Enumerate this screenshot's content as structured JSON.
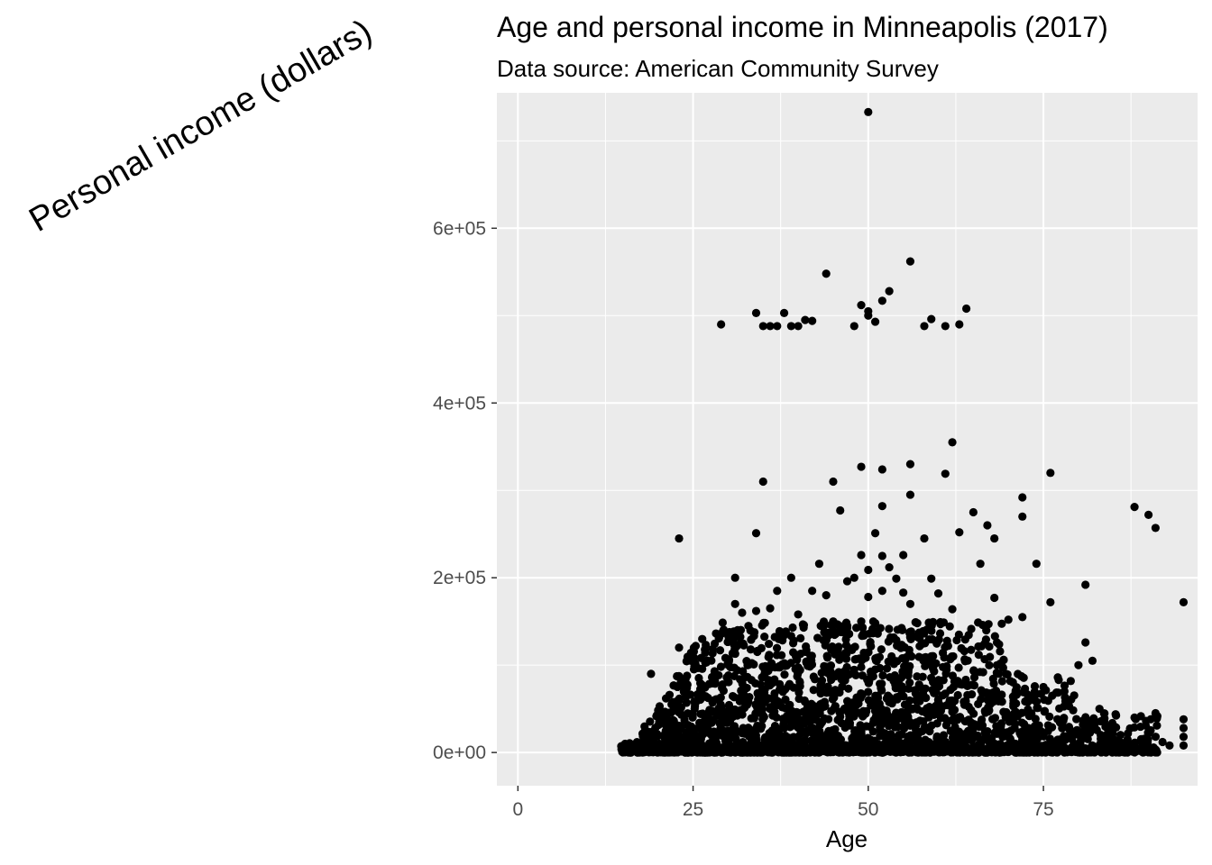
{
  "chart_data": {
    "type": "scatter",
    "title": "Age and personal income in Minneapolis (2017)",
    "subtitle": "Data source: American Community Survey",
    "xlabel": "Age",
    "ylabel": "Personal income (dollars)",
    "xlim": [
      -3,
      97
    ],
    "ylim": [
      -38000,
      755000
    ],
    "x_ticks": [
      0,
      25,
      50,
      75
    ],
    "x_tick_labels": [
      "0",
      "25",
      "50",
      "75"
    ],
    "x_minor_ticks": [
      12.5,
      37.5,
      62.5,
      87.5
    ],
    "y_ticks": [
      0,
      200000,
      400000,
      600000
    ],
    "y_tick_labels": [
      "0e+00",
      "2e+05",
      "4e+05",
      "6e+05"
    ],
    "y_minor_ticks": [
      100000,
      300000,
      500000,
      700000
    ],
    "grid": true,
    "background": "#ebebeb",
    "grid_color": "#ffffff",
    "point_color": "#000000",
    "series": [
      {
        "points": [
          [
            50,
            733000
          ],
          [
            56,
            562000
          ],
          [
            44,
            548000
          ],
          [
            53,
            528000
          ],
          [
            52,
            517000
          ],
          [
            64,
            508000
          ],
          [
            49,
            512000
          ],
          [
            50,
            505000
          ],
          [
            34,
            503000
          ],
          [
            38,
            503000
          ],
          [
            50,
            500000
          ],
          [
            41,
            495000
          ],
          [
            42,
            494000
          ],
          [
            59,
            496000
          ],
          [
            29,
            490000
          ],
          [
            35,
            488000
          ],
          [
            36,
            488000
          ],
          [
            37,
            488000
          ],
          [
            39,
            488000
          ],
          [
            40,
            488000
          ],
          [
            48,
            488000
          ],
          [
            51,
            493000
          ],
          [
            58,
            488000
          ],
          [
            61,
            488000
          ],
          [
            63,
            490000
          ],
          [
            62,
            355000
          ],
          [
            76,
            320000
          ],
          [
            61,
            319000
          ],
          [
            56,
            330000
          ],
          [
            49,
            327000
          ],
          [
            52,
            324000
          ],
          [
            35,
            310000
          ],
          [
            45,
            310000
          ],
          [
            56,
            295000
          ],
          [
            72,
            292000
          ],
          [
            88,
            281000
          ],
          [
            52,
            282000
          ],
          [
            65,
            275000
          ],
          [
            46,
            277000
          ],
          [
            90,
            272000
          ],
          [
            72,
            270000
          ],
          [
            67,
            260000
          ],
          [
            91,
            257000
          ],
          [
            63,
            252000
          ],
          [
            34,
            251000
          ],
          [
            51,
            251000
          ],
          [
            23,
            245000
          ],
          [
            58,
            245000
          ],
          [
            68,
            245000
          ],
          [
            49,
            226000
          ],
          [
            52,
            225000
          ],
          [
            55,
            226000
          ],
          [
            43,
            216000
          ],
          [
            66,
            216000
          ],
          [
            74,
            216000
          ],
          [
            50,
            209000
          ],
          [
            53,
            212000
          ],
          [
            31,
            200000
          ],
          [
            39,
            200000
          ],
          [
            48,
            200000
          ],
          [
            54,
            199000
          ],
          [
            59,
            199000
          ],
          [
            47,
            196000
          ],
          [
            81,
            192000
          ],
          [
            37,
            185000
          ],
          [
            42,
            185000
          ],
          [
            52,
            185000
          ],
          [
            55,
            183000
          ],
          [
            60,
            182000
          ],
          [
            62,
            164000
          ],
          [
            68,
            177000
          ],
          [
            76,
            172000
          ],
          [
            95,
            172000
          ],
          [
            31,
            170000
          ],
          [
            44,
            180000
          ],
          [
            50,
            178000
          ],
          [
            56,
            170000
          ],
          [
            32,
            160000
          ],
          [
            34,
            162000
          ],
          [
            36,
            165000
          ],
          [
            40,
            158000
          ],
          [
            45,
            150000
          ],
          [
            49,
            150000
          ],
          [
            51,
            148000
          ],
          [
            57,
            148000
          ],
          [
            70,
            152000
          ],
          [
            72,
            155000
          ],
          [
            23,
            120000
          ],
          [
            19,
            90000
          ],
          [
            81,
            126000
          ],
          [
            82,
            105000
          ],
          [
            80,
            100000
          ],
          [
            88,
            40000
          ],
          [
            91,
            45000
          ],
          [
            90,
            22000
          ],
          [
            95,
            38000
          ],
          [
            95,
            28000
          ],
          [
            95,
            18000
          ],
          [
            95,
            8000
          ],
          [
            78,
            70000
          ],
          [
            75,
            75000
          ],
          [
            83,
            50000
          ],
          [
            85,
            30000
          ],
          [
            86,
            20000
          ],
          [
            87,
            15000
          ],
          [
            88,
            10000
          ],
          [
            89,
            5000
          ],
          [
            87,
            0
          ],
          [
            92,
            12000
          ],
          [
            93,
            8000
          ]
        ]
      }
    ]
  }
}
